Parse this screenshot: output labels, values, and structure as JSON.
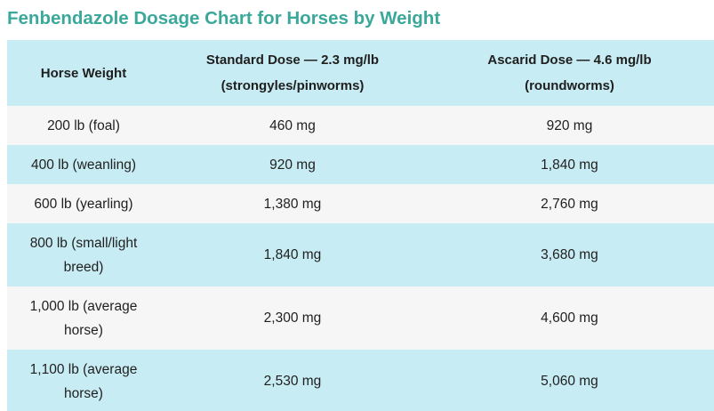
{
  "title": "Fenbendazole Dosage Chart for Horses by Weight",
  "table": {
    "headers": {
      "weight": "Horse Weight",
      "standard_line1": "Standard Dose — 2.3 mg/lb",
      "standard_line2": "(strongyles/pinworms)",
      "ascarid_line1": "Ascarid Dose — 4.6 mg/lb",
      "ascarid_line2": "(roundworms)"
    },
    "rows": [
      {
        "weight": "200 lb (foal)",
        "standard": "460 mg",
        "ascarid": "920 mg"
      },
      {
        "weight": "400 lb (weanling)",
        "standard": "920 mg",
        "ascarid": "1,840 mg"
      },
      {
        "weight": "600 lb (yearling)",
        "standard": "1,380 mg",
        "ascarid": "2,760 mg"
      },
      {
        "weight": "800 lb (small/light breed)",
        "standard": "1,840 mg",
        "ascarid": "3,680 mg"
      },
      {
        "weight": "1,000 lb (average horse)",
        "standard": "2,300 mg",
        "ascarid": "4,600 mg"
      },
      {
        "weight": "1,100 lb (average horse)",
        "standard": "2,530 mg",
        "ascarid": "5,060 mg"
      }
    ]
  },
  "colors": {
    "title": "#3aa89a",
    "header_bg": "#c8ecf3",
    "row_alt_bg": "#f6f6f6"
  }
}
